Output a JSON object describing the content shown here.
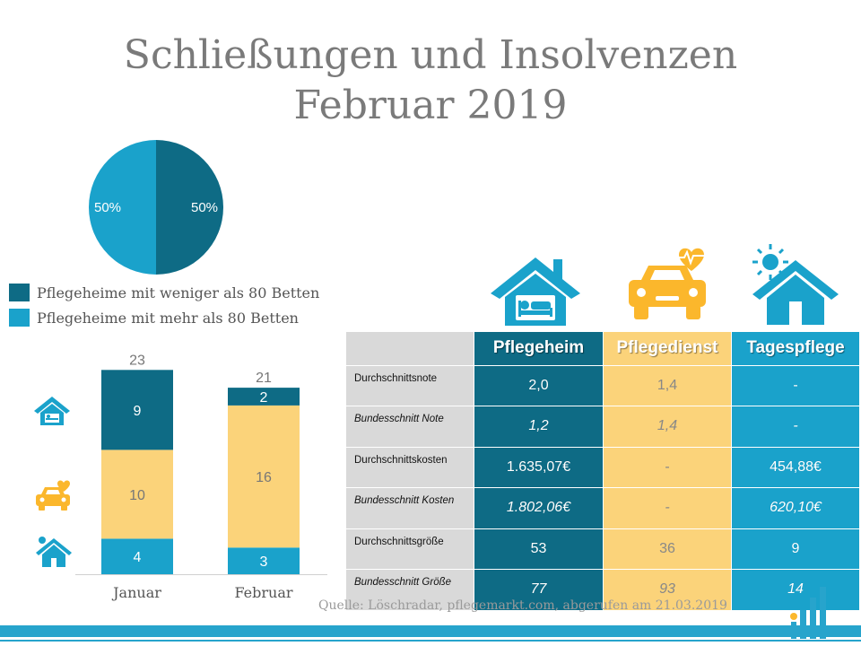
{
  "title": {
    "line1": "Schließungen und Insolvenzen",
    "line2": "Februar 2019"
  },
  "colors": {
    "heim_dark": "#0e6b85",
    "tages_blue": "#1aa2cb",
    "dienst_yellow": "#fbd37a",
    "grey": "#d9d9d9",
    "accent_bar": "#27a4cc"
  },
  "chart_data": [
    {
      "type": "pie",
      "slices": [
        {
          "label": "Pflegeheime mit weniger als 80 Betten",
          "value": 50,
          "display": "50%",
          "color": "#0e6b85"
        },
        {
          "label": "Pflegeheime mit mehr als 80 Betten",
          "value": 50,
          "display": "50%",
          "color": "#1aa2cb"
        }
      ],
      "legend": "bottom-left"
    },
    {
      "type": "bar",
      "stacked": true,
      "categories": [
        "Januar",
        "Februar"
      ],
      "totals": [
        23,
        21
      ],
      "series": [
        {
          "icon": "house-bed-icon",
          "color": "#1aa2cb",
          "values": [
            4,
            3
          ]
        },
        {
          "icon": "car-heart-icon",
          "color": "#fbd37a",
          "values": [
            10,
            16
          ]
        },
        {
          "icon": "house-sun-icon",
          "color": "#0e6b85",
          "values": [
            9,
            2
          ]
        }
      ]
    }
  ],
  "table": {
    "headers": [
      "",
      "Pflegeheim",
      "Pflegedienst",
      "Tagespflege"
    ],
    "rows": [
      {
        "label": "Durchschnittsnote",
        "italic": false,
        "values": [
          "2,0",
          "1,4",
          "-"
        ]
      },
      {
        "label": "Bundesschnitt Note",
        "italic": true,
        "values": [
          "1,2",
          "1,4",
          "-"
        ]
      },
      {
        "label": "Durchschnittskosten",
        "italic": false,
        "values": [
          "1.635,07€",
          "-",
          "454,88€"
        ]
      },
      {
        "label": "Bundesschnitt Kosten",
        "italic": true,
        "values": [
          "1.802,06€",
          "-",
          "620,10€"
        ]
      },
      {
        "label": "Durchschnittsgröße",
        "italic": false,
        "values": [
          "53",
          "36",
          "9"
        ]
      },
      {
        "label": "Bundesschnitt Größe",
        "italic": true,
        "values": [
          "77",
          "93",
          "14"
        ]
      }
    ]
  },
  "source": "Quelle: Löschradar, pflegemarkt.com, abgerufen am 21.03.2019"
}
